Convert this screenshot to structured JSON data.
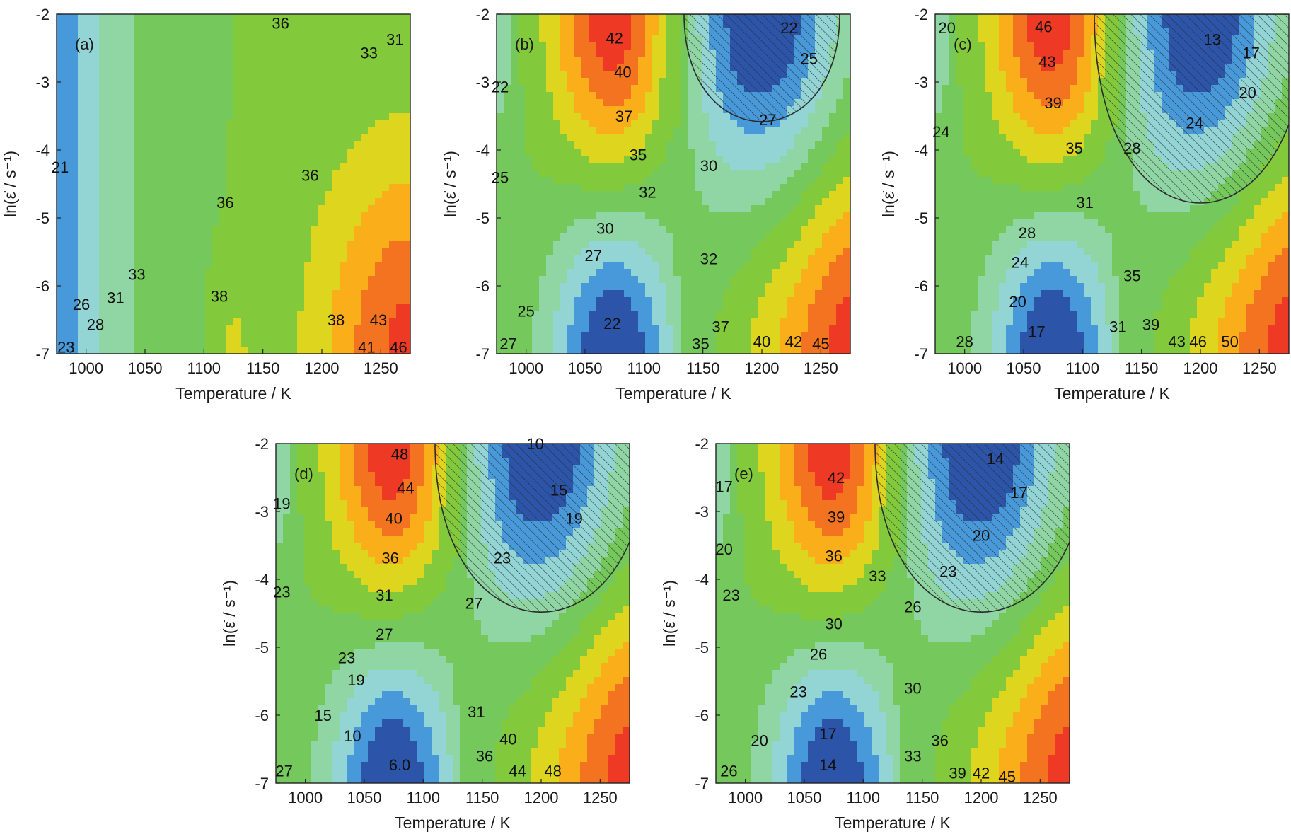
{
  "figure": {
    "x_axis": {
      "label": "Temperature / K",
      "range": [
        975,
        1275
      ],
      "ticks": [
        1000,
        1050,
        1100,
        1150,
        1200,
        1250
      ]
    },
    "y_axis": {
      "label": "ln(ε̇ / s⁻¹)",
      "range": [
        -7,
        -2
      ],
      "ticks": [
        -2,
        -3,
        -4,
        -5,
        -6,
        -7
      ]
    },
    "palette": {
      "low": "#2c54a8",
      "mid": "#6cc443",
      "high": "#ee3a24",
      "hatch_outline": "#2b2b2b"
    }
  },
  "chart_data": [
    {
      "type": "heatmap",
      "panel": "(a)",
      "title": "",
      "xlabel": "Temperature / K",
      "ylabel": "ln(ε̇ / s⁻¹)",
      "xlim": [
        975,
        1275
      ],
      "ylim": [
        -7,
        -2
      ],
      "color_range": [
        20,
        47
      ],
      "instability_region": false,
      "contour_labels": [
        {
          "text": "21",
          "x": 978,
          "y": -4.25
        },
        {
          "text": "23",
          "x": 983,
          "y": -6.9
        },
        {
          "text": "26",
          "x": 996,
          "y": -6.27
        },
        {
          "text": "28",
          "x": 1008,
          "y": -6.57
        },
        {
          "text": "31",
          "x": 1025,
          "y": -6.17
        },
        {
          "text": "33",
          "x": 1043,
          "y": -5.83
        },
        {
          "text": "36",
          "x": 1165,
          "y": -2.13
        },
        {
          "text": "33",
          "x": 1240,
          "y": -2.57
        },
        {
          "text": "31",
          "x": 1262,
          "y": -2.37
        },
        {
          "text": "36",
          "x": 1190,
          "y": -4.37
        },
        {
          "text": "36",
          "x": 1118,
          "y": -4.77
        },
        {
          "text": "38",
          "x": 1113,
          "y": -6.15
        },
        {
          "text": "38",
          "x": 1212,
          "y": -6.5
        },
        {
          "text": "43",
          "x": 1248,
          "y": -6.5
        },
        {
          "text": "41",
          "x": 1238,
          "y": -6.9
        },
        {
          "text": "46",
          "x": 1265,
          "y": -6.9
        }
      ]
    },
    {
      "type": "heatmap",
      "panel": "(b)",
      "title": "",
      "xlabel": "Temperature / K",
      "ylabel": "ln(ε̇ / s⁻¹)",
      "xlim": [
        975,
        1275
      ],
      "ylim": [
        -7,
        -2
      ],
      "color_range": [
        20,
        46
      ],
      "instability_region": true,
      "contour_labels": [
        {
          "text": "42",
          "x": 1075,
          "y": -2.35
        },
        {
          "text": "40",
          "x": 1082,
          "y": -2.85
        },
        {
          "text": "37",
          "x": 1083,
          "y": -3.5
        },
        {
          "text": "35",
          "x": 1095,
          "y": -4.07
        },
        {
          "text": "32",
          "x": 1103,
          "y": -4.62
        },
        {
          "text": "30",
          "x": 1155,
          "y": -4.23
        },
        {
          "text": "30",
          "x": 1067,
          "y": -5.15
        },
        {
          "text": "27",
          "x": 1057,
          "y": -5.55
        },
        {
          "text": "32",
          "x": 1155,
          "y": -5.6
        },
        {
          "text": "25",
          "x": 1000,
          "y": -6.37
        },
        {
          "text": "22",
          "x": 1073,
          "y": -6.55
        },
        {
          "text": "27",
          "x": 985,
          "y": -6.85
        },
        {
          "text": "22",
          "x": 1223,
          "y": -2.2
        },
        {
          "text": "25",
          "x": 1240,
          "y": -2.65
        },
        {
          "text": "27",
          "x": 1205,
          "y": -3.55
        },
        {
          "text": "22",
          "x": 978,
          "y": -3.07
        },
        {
          "text": "25",
          "x": 978,
          "y": -4.4
        },
        {
          "text": "35",
          "x": 1148,
          "y": -6.85
        },
        {
          "text": "37",
          "x": 1165,
          "y": -6.6
        },
        {
          "text": "40",
          "x": 1200,
          "y": -6.82
        },
        {
          "text": "42",
          "x": 1227,
          "y": -6.82
        },
        {
          "text": "45",
          "x": 1250,
          "y": -6.85
        }
      ]
    },
    {
      "type": "heatmap",
      "panel": "(c)",
      "title": "",
      "xlabel": "Temperature / K",
      "ylabel": "ln(ε̇ / s⁻¹)",
      "xlim": [
        975,
        1275
      ],
      "ylim": [
        -7,
        -2
      ],
      "color_range": [
        12,
        52
      ],
      "instability_region": true,
      "contour_labels": [
        {
          "text": "20",
          "x": 985,
          "y": -2.2
        },
        {
          "text": "46",
          "x": 1067,
          "y": -2.18
        },
        {
          "text": "43",
          "x": 1070,
          "y": -2.7
        },
        {
          "text": "39",
          "x": 1075,
          "y": -3.3
        },
        {
          "text": "35",
          "x": 1093,
          "y": -3.97
        },
        {
          "text": "31",
          "x": 1102,
          "y": -4.77
        },
        {
          "text": "28",
          "x": 1053,
          "y": -5.22
        },
        {
          "text": "24",
          "x": 1047,
          "y": -5.65
        },
        {
          "text": "20",
          "x": 1045,
          "y": -6.23
        },
        {
          "text": "17",
          "x": 1061,
          "y": -6.67
        },
        {
          "text": "28",
          "x": 1000,
          "y": -6.82
        },
        {
          "text": "24",
          "x": 980,
          "y": -3.73
        },
        {
          "text": "13",
          "x": 1210,
          "y": -2.37
        },
        {
          "text": "17",
          "x": 1243,
          "y": -2.57
        },
        {
          "text": "20",
          "x": 1240,
          "y": -3.15
        },
        {
          "text": "24",
          "x": 1195,
          "y": -3.6
        },
        {
          "text": "28",
          "x": 1142,
          "y": -3.97
        },
        {
          "text": "35",
          "x": 1142,
          "y": -5.85
        },
        {
          "text": "31",
          "x": 1130,
          "y": -6.6
        },
        {
          "text": "39",
          "x": 1158,
          "y": -6.57
        },
        {
          "text": "43",
          "x": 1180,
          "y": -6.82
        },
        {
          "text": "46",
          "x": 1198,
          "y": -6.82
        },
        {
          "text": "50",
          "x": 1225,
          "y": -6.82
        }
      ]
    },
    {
      "type": "heatmap",
      "panel": "(d)",
      "title": "",
      "xlabel": "Temperature / K",
      "ylabel": "ln(ε̇ / s⁻¹)",
      "xlim": [
        975,
        1275
      ],
      "ylim": [
        -7,
        -2
      ],
      "color_range": [
        5,
        50
      ],
      "instability_region": true,
      "contour_labels": [
        {
          "text": "48",
          "x": 1080,
          "y": -2.15
        },
        {
          "text": "44",
          "x": 1085,
          "y": -2.65
        },
        {
          "text": "40",
          "x": 1075,
          "y": -3.1
        },
        {
          "text": "36",
          "x": 1072,
          "y": -3.68
        },
        {
          "text": "31",
          "x": 1067,
          "y": -4.23
        },
        {
          "text": "27",
          "x": 1067,
          "y": -4.8
        },
        {
          "text": "23",
          "x": 1035,
          "y": -5.15
        },
        {
          "text": "19",
          "x": 1043,
          "y": -5.48
        },
        {
          "text": "15",
          "x": 1015,
          "y": -6.0
        },
        {
          "text": "10",
          "x": 1040,
          "y": -6.3
        },
        {
          "text": "6.0",
          "x": 1080,
          "y": -6.73
        },
        {
          "text": "19",
          "x": 980,
          "y": -2.88
        },
        {
          "text": "23",
          "x": 980,
          "y": -4.18
        },
        {
          "text": "27",
          "x": 982,
          "y": -6.82
        },
        {
          "text": "10",
          "x": 1195,
          "y": -2.0
        },
        {
          "text": "15",
          "x": 1215,
          "y": -2.68
        },
        {
          "text": "19",
          "x": 1228,
          "y": -3.1
        },
        {
          "text": "23",
          "x": 1167,
          "y": -3.68
        },
        {
          "text": "27",
          "x": 1143,
          "y": -4.35
        },
        {
          "text": "31",
          "x": 1145,
          "y": -5.95
        },
        {
          "text": "36",
          "x": 1152,
          "y": -6.6
        },
        {
          "text": "40",
          "x": 1172,
          "y": -6.35
        },
        {
          "text": "44",
          "x": 1180,
          "y": -6.82
        },
        {
          "text": "48",
          "x": 1210,
          "y": -6.82
        }
      ]
    },
    {
      "type": "heatmap",
      "panel": "(e)",
      "title": "",
      "xlabel": "Temperature / K",
      "ylabel": "ln(ε̇ / s⁻¹)",
      "xlim": [
        975,
        1275
      ],
      "ylim": [
        -7,
        -2
      ],
      "color_range": [
        13,
        47
      ],
      "instability_region": true,
      "contour_labels": [
        {
          "text": "42",
          "x": 1077,
          "y": -2.5
        },
        {
          "text": "39",
          "x": 1077,
          "y": -3.08
        },
        {
          "text": "36",
          "x": 1075,
          "y": -3.65
        },
        {
          "text": "33",
          "x": 1112,
          "y": -3.95
        },
        {
          "text": "30",
          "x": 1075,
          "y": -4.65
        },
        {
          "text": "26",
          "x": 1062,
          "y": -5.1
        },
        {
          "text": "23",
          "x": 1045,
          "y": -5.65
        },
        {
          "text": "20",
          "x": 1012,
          "y": -6.37
        },
        {
          "text": "17",
          "x": 1070,
          "y": -6.27
        },
        {
          "text": "14",
          "x": 1070,
          "y": -6.73
        },
        {
          "text": "26",
          "x": 986,
          "y": -6.82
        },
        {
          "text": "17",
          "x": 982,
          "y": -2.63
        },
        {
          "text": "20",
          "x": 982,
          "y": -3.55
        },
        {
          "text": "23",
          "x": 988,
          "y": -4.23
        },
        {
          "text": "14",
          "x": 1212,
          "y": -2.22
        },
        {
          "text": "17",
          "x": 1232,
          "y": -2.72
        },
        {
          "text": "20",
          "x": 1200,
          "y": -3.35
        },
        {
          "text": "23",
          "x": 1172,
          "y": -3.88
        },
        {
          "text": "26",
          "x": 1142,
          "y": -4.4
        },
        {
          "text": "30",
          "x": 1142,
          "y": -5.6
        },
        {
          "text": "33",
          "x": 1142,
          "y": -6.6
        },
        {
          "text": "36",
          "x": 1165,
          "y": -6.37
        },
        {
          "text": "39",
          "x": 1180,
          "y": -6.85
        },
        {
          "text": "42",
          "x": 1200,
          "y": -6.85
        },
        {
          "text": "45",
          "x": 1222,
          "y": -6.9
        }
      ]
    }
  ]
}
